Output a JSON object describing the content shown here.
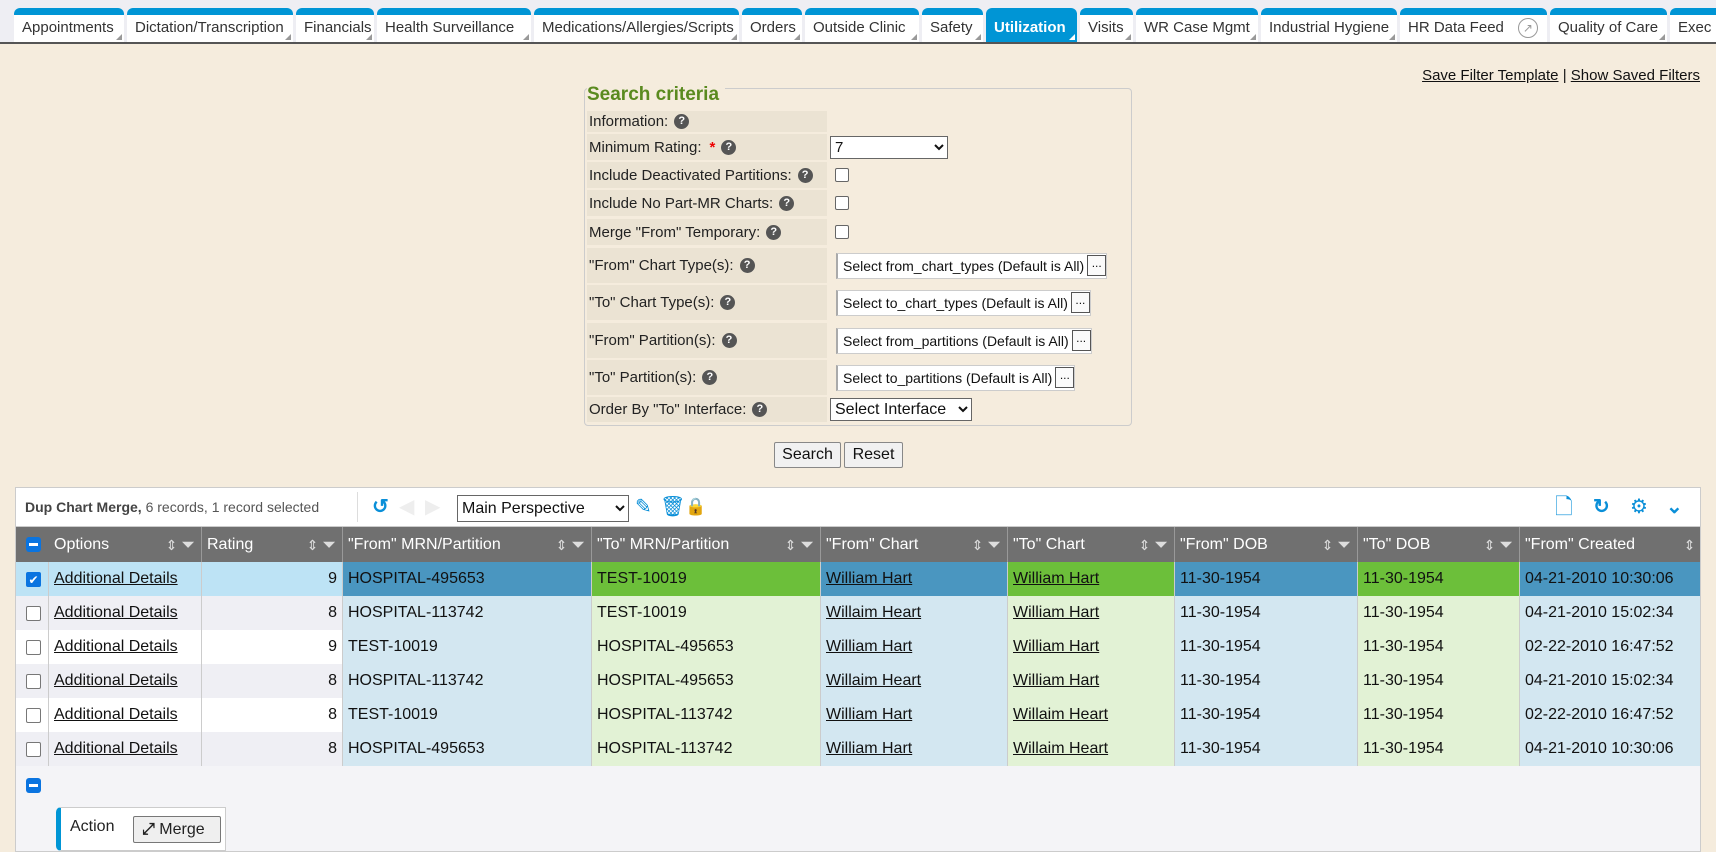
{
  "tabs": [
    {
      "label": "Appointments",
      "active": false
    },
    {
      "label": "Dictation/Transcription",
      "active": false
    },
    {
      "label": "Financials",
      "active": false
    },
    {
      "label": "Health Surveillance",
      "active": false
    },
    {
      "label": "Medications/Allergies/Scripts",
      "active": false
    },
    {
      "label": "Orders",
      "active": false
    },
    {
      "label": "Outside Clinic",
      "active": false
    },
    {
      "label": "Safety",
      "active": false
    },
    {
      "label": "Utilization",
      "active": true
    },
    {
      "label": "Visits",
      "active": false
    },
    {
      "label": "WR Case Mgmt",
      "active": false
    },
    {
      "label": "Industrial Hygiene",
      "active": false
    },
    {
      "label": "HR Data Feed",
      "active": false,
      "icon": "external-link-icon"
    },
    {
      "label": "Quality of Care",
      "active": false
    },
    {
      "label": "Exec",
      "active": false
    }
  ],
  "links": {
    "save_filter": "Save Filter Template",
    "separator": "|",
    "show_saved": "Show Saved Filters"
  },
  "search": {
    "legend": "Search criteria",
    "information": "Information:",
    "min_rating": {
      "label": "Minimum Rating:",
      "required": "*",
      "value": "7"
    },
    "include_deactivated": {
      "label": "Include Deactivated Partitions:",
      "checked": false
    },
    "include_no_part": {
      "label": "Include No Part-MR Charts:",
      "checked": false
    },
    "merge_from_temp": {
      "label": "Merge \"From\" Temporary:",
      "checked": false
    },
    "from_chart_types": {
      "label": "\"From\" Chart Type(s):",
      "value": "Select from_chart_types (Default is All)"
    },
    "to_chart_types": {
      "label": "\"To\" Chart Type(s):",
      "value": "Select to_chart_types (Default is All)"
    },
    "from_partitions": {
      "label": "\"From\" Partition(s):",
      "value": "Select from_partitions (Default is All)"
    },
    "to_partitions": {
      "label": "\"To\" Partition(s):",
      "value": "Select to_partitions (Default is All)"
    },
    "order_by": {
      "label": "Order By \"To\" Interface:",
      "value": "Select Interface"
    },
    "picker_button": "...",
    "help": "?",
    "search_button": "Search",
    "reset_button": "Reset"
  },
  "grid": {
    "title": "Dup Chart Merge,",
    "subtitle": "6 records, 1 record selected",
    "perspective": "Main Perspective",
    "columns": [
      "Options",
      "Rating",
      "\"From\" MRN/Partition",
      "\"To\" MRN/Partition",
      "\"From\" Chart",
      "\"To\" Chart",
      "\"From\" DOB",
      "\"To\" DOB",
      "\"From\" Created"
    ],
    "rows": [
      {
        "selected": true,
        "options": "Additional Details",
        "rating": "9",
        "from_mrn": "HOSPITAL-495653",
        "to_mrn": "TEST-10019",
        "from_chart": "William Hart",
        "to_chart": "William Hart",
        "from_dob": "11-30-1954",
        "to_dob": "11-30-1954",
        "from_created": "04-21-2010 10:30:06"
      },
      {
        "selected": false,
        "options": "Additional Details",
        "rating": "8",
        "from_mrn": "HOSPITAL-113742",
        "to_mrn": "TEST-10019",
        "from_chart": "Willaim Heart",
        "to_chart": "William Hart",
        "from_dob": "11-30-1954",
        "to_dob": "11-30-1954",
        "from_created": "04-21-2010 15:02:34"
      },
      {
        "selected": false,
        "options": "Additional Details",
        "rating": "9",
        "from_mrn": "TEST-10019",
        "to_mrn": "HOSPITAL-495653",
        "from_chart": "William Hart",
        "to_chart": "William Hart",
        "from_dob": "11-30-1954",
        "to_dob": "11-30-1954",
        "from_created": "02-22-2010 16:47:52"
      },
      {
        "selected": false,
        "options": "Additional Details",
        "rating": "8",
        "from_mrn": "HOSPITAL-113742",
        "to_mrn": "HOSPITAL-495653",
        "from_chart": "Willaim Heart",
        "to_chart": "William Hart",
        "from_dob": "11-30-1954",
        "to_dob": "11-30-1954",
        "from_created": "04-21-2010 15:02:34"
      },
      {
        "selected": false,
        "options": "Additional Details",
        "rating": "8",
        "from_mrn": "TEST-10019",
        "to_mrn": "HOSPITAL-113742",
        "from_chart": "William Hart",
        "to_chart": "Willaim Heart",
        "from_dob": "11-30-1954",
        "to_dob": "11-30-1954",
        "from_created": "02-22-2010 16:47:52"
      },
      {
        "selected": false,
        "options": "Additional Details",
        "rating": "8",
        "from_mrn": "HOSPITAL-495653",
        "to_mrn": "HOSPITAL-113742",
        "from_chart": "William Hart",
        "to_chart": "Willaim Heart",
        "from_dob": "11-30-1954",
        "to_dob": "11-30-1954",
        "from_created": "04-21-2010 10:30:06"
      }
    ],
    "action_label": "Action",
    "merge_button": "Merge"
  },
  "colors": {
    "accent": "#0095d5",
    "from_selected": "#4a96c0",
    "to_selected": "#6cbf3a",
    "from_bg": "#d3e7f1",
    "to_bg": "#e2f2d5",
    "selected_row": "#bde3f5",
    "header": "#707070"
  }
}
